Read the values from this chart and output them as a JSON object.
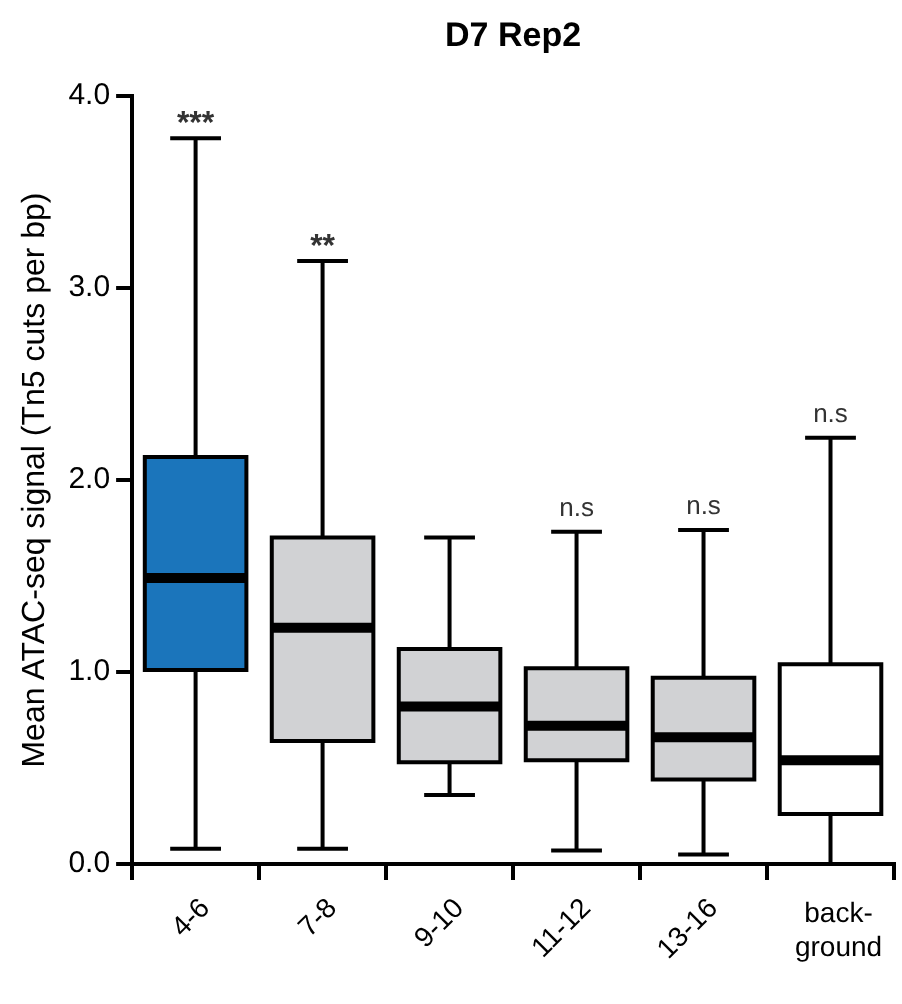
{
  "chart_data": {
    "type": "box",
    "title": "D7 Rep2",
    "ylabel": "Mean ATAC-seq signal (Tn5 cuts per bp)",
    "categories": [
      "4-6",
      "7-8",
      "9-10",
      "11-12",
      "13-16",
      "back-\nground"
    ],
    "colors": [
      "#1b75bb",
      "#d1d2d4",
      "#d1d2d4",
      "#d1d2d4",
      "#d1d2d4",
      "#ffffff"
    ],
    "boxes": [
      {
        "low": 0.08,
        "q1": 1.01,
        "median": 1.49,
        "q3": 2.12,
        "high": 3.78
      },
      {
        "low": 0.08,
        "q1": 0.64,
        "median": 1.23,
        "q3": 1.7,
        "high": 3.14
      },
      {
        "low": 0.36,
        "q1": 0.53,
        "median": 0.82,
        "q3": 1.12,
        "high": 1.7
      },
      {
        "low": 0.07,
        "q1": 0.54,
        "median": 0.72,
        "q3": 1.02,
        "high": 1.73
      },
      {
        "low": 0.05,
        "q1": 0.44,
        "median": 0.66,
        "q3": 0.97,
        "high": 1.74
      },
      {
        "low": 0.0,
        "q1": 0.26,
        "median": 0.54,
        "q3": 1.04,
        "high": 2.22
      }
    ],
    "ylim": [
      0,
      4
    ],
    "yticks": [
      {
        "value": 0,
        "label": "0.0"
      },
      {
        "value": 1,
        "label": "1.0"
      },
      {
        "value": 2,
        "label": "2.0"
      },
      {
        "value": 3,
        "label": "3.0"
      },
      {
        "value": 4,
        "label": "4.0"
      }
    ],
    "grid": false,
    "legend": false,
    "annotations": [
      {
        "text": "***",
        "x": "4-6",
        "y": 3.78
      },
      {
        "text": "**",
        "x": "7-8",
        "y": 3.14
      },
      {
        "text": "n.s",
        "x": "11-12",
        "y": 1.73
      },
      {
        "text": "n.s",
        "x": "13-16",
        "y": 1.74
      },
      {
        "text": "n.s",
        "x": "back-\nground",
        "y": 2.22
      }
    ]
  }
}
